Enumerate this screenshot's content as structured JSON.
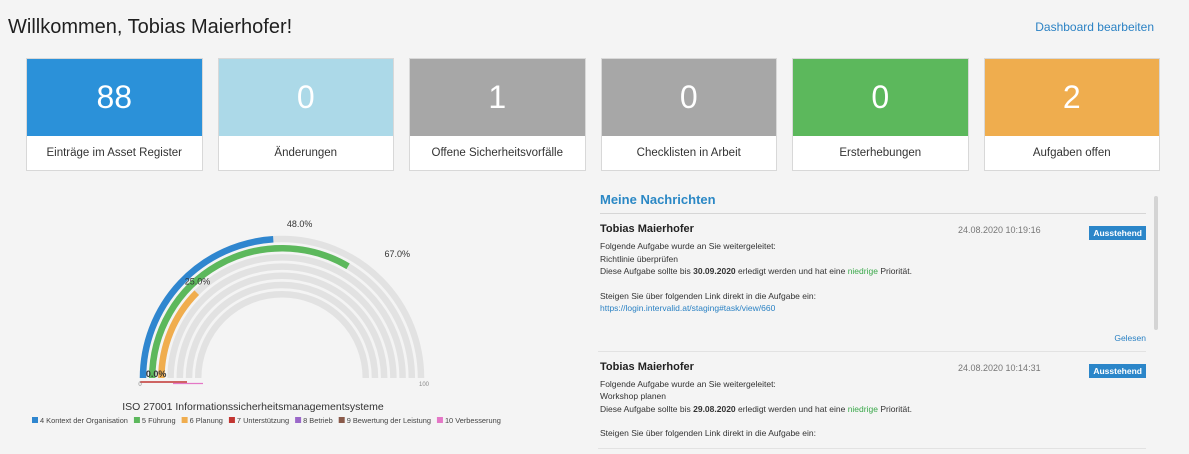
{
  "header": {
    "title": "Willkommen, Tobias Maierhofer!",
    "edit_link": "Dashboard bearbeiten"
  },
  "tiles": [
    {
      "value": "88",
      "label": "Einträge im Asset Register",
      "color": "#2b91d9"
    },
    {
      "value": "0",
      "label": "Änderungen",
      "color": "#acd9e8"
    },
    {
      "value": "1",
      "label": "Offene Sicherheitsvorfälle",
      "color": "#a7a7a7"
    },
    {
      "value": "0",
      "label": "Checklisten in Arbeit",
      "color": "#a7a7a7"
    },
    {
      "value": "0",
      "label": "Ersterhebungen",
      "color": "#5cb85c"
    },
    {
      "value": "2",
      "label": "Aufgaben offen",
      "color": "#efad4e"
    }
  ],
  "chart_data": {
    "type": "radial-bar",
    "title": "ISO 27001 Informationssicherheitsmanagementsysteme",
    "axis_min": 0,
    "axis_max": 100,
    "tick_labels": [
      "0",
      "100"
    ],
    "legend_position": "bottom",
    "series": [
      {
        "name": "4 Kontext der Organisation",
        "value": 48.0,
        "label": "48.0%",
        "color": "#2f86cf"
      },
      {
        "name": "5 Führung",
        "value": 67.0,
        "label": "67.0%",
        "color": "#5cb85c"
      },
      {
        "name": "6 Planung",
        "value": 25.0,
        "label": "25.0%",
        "color": "#f0ad4e"
      },
      {
        "name": "7 Unterstützung",
        "value": 0.0,
        "label": "0.0%",
        "color": "#c23531"
      },
      {
        "name": "8 Betrieb",
        "value": 0.0,
        "label": "",
        "color": "#9b68c9"
      },
      {
        "name": "9 Bewertung der Leistung",
        "value": 0.0,
        "label": "",
        "color": "#8a5a4a"
      },
      {
        "name": "10 Verbesserung",
        "value": 0.0,
        "label": "",
        "color": "#e477c6"
      }
    ]
  },
  "messages": {
    "heading": "Meine Nachrichten",
    "items": [
      {
        "sender": "Tobias Maierhofer",
        "time": "24.08.2020 10:19:16",
        "badge": "Ausstehend",
        "line1": "Folgende Aufgabe wurde an Sie weitergeleitet:",
        "task": "Richtlinie überprüfen",
        "due_prefix": "Diese Aufgabe sollte bis",
        "due_date": "30.09.2020",
        "due_middle": "erledigt werden und hat eine",
        "priority": "niedrige",
        "due_suffix": "Priorität.",
        "link_intro": "Steigen Sie über folgenden Link direkt in die Aufgabe ein:",
        "link": "https://login.intervalid.at/staging#task/view/660",
        "read_label": "Gelesen"
      },
      {
        "sender": "Tobias Maierhofer",
        "time": "24.08.2020 10:14:31",
        "badge": "Ausstehend",
        "line1": "Folgende Aufgabe wurde an Sie weitergeleitet:",
        "task": "Workshop planen",
        "due_prefix": "Diese Aufgabe sollte bis",
        "due_date": "29.08.2020",
        "due_middle": "erledigt werden und hat eine",
        "priority": "niedrige",
        "due_suffix": "Priorität.",
        "link_intro": "Steigen Sie über folgenden Link direkt in die Aufgabe ein:"
      }
    ]
  }
}
